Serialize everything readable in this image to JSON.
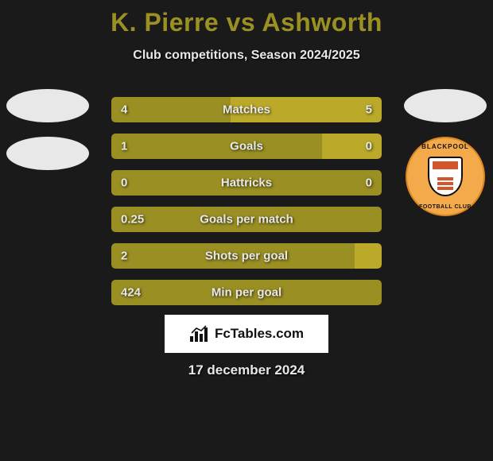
{
  "title": "K. Pierre vs Ashworth",
  "subtitle": "Club competitions, Season 2024/2025",
  "date": "17 december 2024",
  "footer_brand": "FcTables.com",
  "colors": {
    "background": "#1a1a1a",
    "title": "#9a9122",
    "bar_left": "#9a8f22",
    "bar_right": "#bba92a",
    "text": "#e8e8e8",
    "badge_bg": "#f4a94a"
  },
  "stats": [
    {
      "label": "Matches",
      "left_val": "4",
      "right_val": "5",
      "left_pct": 44,
      "right_pct": 56
    },
    {
      "label": "Goals",
      "left_val": "1",
      "right_val": "0",
      "left_pct": 78,
      "right_pct": 22
    },
    {
      "label": "Hattricks",
      "left_val": "0",
      "right_val": "0",
      "left_pct": 100,
      "right_pct": 0,
      "full": true
    },
    {
      "label": "Goals per match",
      "left_val": "0.25",
      "right_val": "",
      "left_pct": 100,
      "right_pct": 0,
      "full": true
    },
    {
      "label": "Shots per goal",
      "left_val": "2",
      "right_val": "",
      "left_pct": 90,
      "right_pct": 10
    },
    {
      "label": "Min per goal",
      "left_val": "424",
      "right_val": "",
      "left_pct": 100,
      "right_pct": 0,
      "full": true
    }
  ],
  "right_club": {
    "top_text": "BLACKPOOL",
    "bottom_text": "FOOTBALL CLUB"
  }
}
